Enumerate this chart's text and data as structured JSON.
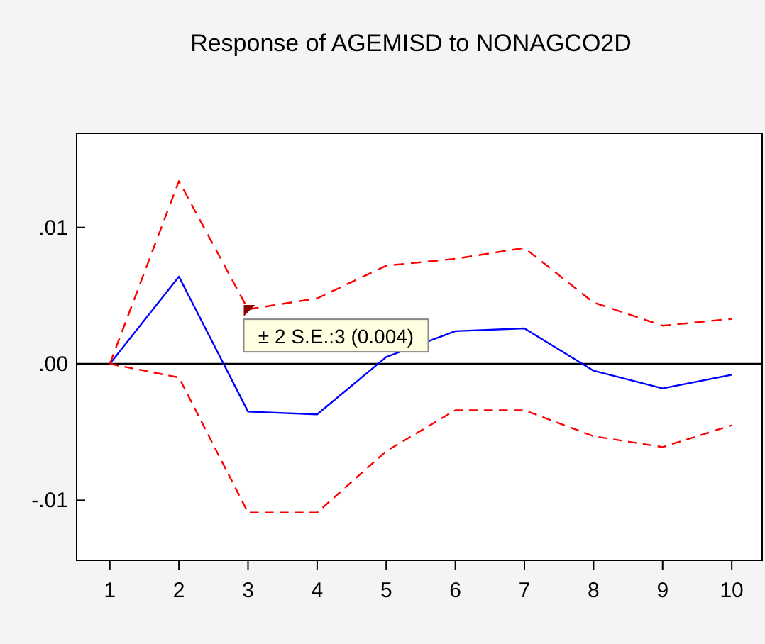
{
  "chart_data": {
    "type": "line",
    "title": "Response of AGEMISD to NONAGCO2D",
    "x": [
      1,
      2,
      3,
      4,
      5,
      6,
      7,
      8,
      9,
      10
    ],
    "series": [
      {
        "color": "#0000ff",
        "line_style": "solid",
        "values": [
          0,
          0.0064,
          -0.0035,
          -0.0037,
          0.0005,
          0.0024,
          0.0026,
          -0.0005,
          -0.0018,
          -0.0008
        ]
      },
      {
        "color": "#ff0000",
        "line_style": "dashed",
        "values": [
          0,
          0.0134,
          0.004,
          0.0048,
          0.0072,
          0.0077,
          0.0085,
          0.0045,
          0.0028,
          0.0033
        ]
      },
      {
        "color": "#ff0000",
        "line_style": "dashed",
        "values": [
          0,
          -0.001,
          -0.0109,
          -0.0109,
          -0.0064,
          -0.0034,
          -0.0034,
          -0.0053,
          -0.0061,
          -0.0045
        ]
      }
    ],
    "xlim": [
      0.52,
      10.44
    ],
    "xticks": [
      1,
      2,
      3,
      4,
      5,
      6,
      7,
      8,
      9,
      10
    ],
    "ylim": [
      -0.0144,
      0.0169
    ],
    "yticks": [
      {
        "value": -0.01,
        "label": "-.01"
      },
      {
        "value": 0,
        "label": ".00"
      },
      {
        "value": 0.01,
        "label": ".01"
      }
    ],
    "ref_lines": [
      {
        "axis": "y",
        "value": 0,
        "color": "#000000"
      }
    ],
    "annotations": [
      {
        "text": "± 2 S.E.:3 (0.004)",
        "x": 3,
        "y": 0.004
      }
    ],
    "grid": false,
    "marker": "none"
  }
}
